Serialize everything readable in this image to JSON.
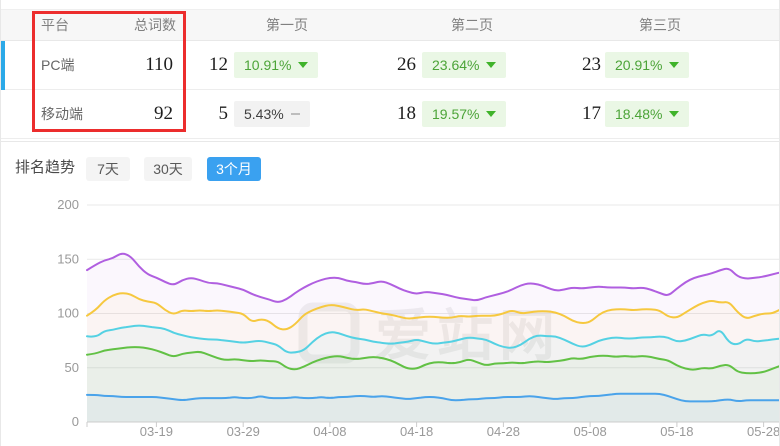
{
  "table": {
    "headers": {
      "platform": "平台",
      "total_words": "总词数",
      "page1": "第一页",
      "page2": "第二页",
      "page3": "第三页"
    },
    "rows": [
      {
        "platform": "PC端",
        "total": "110",
        "selected": true,
        "page1": {
          "count": "12",
          "percent": "10.91%",
          "trend": "down"
        },
        "page2": {
          "count": "26",
          "percent": "23.64%",
          "trend": "down"
        },
        "page3": {
          "count": "23",
          "percent": "20.91%",
          "trend": "down"
        }
      },
      {
        "platform": "移动端",
        "total": "92",
        "selected": false,
        "page1": {
          "count": "5",
          "percent": "5.43%",
          "trend": "flat"
        },
        "page2": {
          "count": "18",
          "percent": "19.57%",
          "trend": "down"
        },
        "page3": {
          "count": "17",
          "percent": "18.48%",
          "trend": "down"
        }
      }
    ]
  },
  "trend_section": {
    "label": "排名趋势",
    "tabs": [
      {
        "label": "7天",
        "active": false
      },
      {
        "label": "30天",
        "active": false
      },
      {
        "label": "3个月",
        "active": true
      }
    ]
  },
  "watermark": {
    "text": "爱站网",
    "icon": "aizhan-logo"
  },
  "colors": {
    "accent_row_indicator": "#2ba9e8",
    "annotation_box": "#ec2d2d",
    "tab_active_bg": "#3aa1f0",
    "badge_green_bg": "#eaf7e5",
    "badge_green_text": "#4ca438",
    "badge_gray_bg": "#f2f2f2",
    "header_band_bg": "#f7f7f7"
  },
  "chart_data": {
    "type": "line",
    "title": "",
    "xlabel": "",
    "ylabel": "",
    "smooth": true,
    "grid": true,
    "legend": "none",
    "ylim": [
      0,
      200
    ],
    "y_ticks": [
      0,
      50,
      100,
      150,
      200
    ],
    "x_labels": [
      "03-19",
      "03-29",
      "04-08",
      "04-18",
      "04-28",
      "05-08",
      "05-18",
      "05-28"
    ],
    "x_tick_indices": [
      8,
      18,
      28,
      38,
      48,
      58,
      68,
      78
    ],
    "series": [
      {
        "name": "purple",
        "color": "#b05fe0",
        "values": [
          140,
          145,
          149,
          151,
          156,
          153,
          143,
          136,
          133,
          129,
          126,
          131,
          133,
          131,
          128,
          128,
          126,
          124,
          122,
          118,
          115,
          113,
          110,
          113,
          119,
          124,
          128,
          131,
          133,
          133,
          130,
          129,
          127,
          128,
          130,
          127,
          123,
          120,
          118,
          120,
          119,
          118,
          116,
          114,
          113,
          112,
          115,
          117,
          119,
          122,
          126,
          128,
          127,
          124,
          121,
          122,
          124,
          123,
          124,
          125,
          124,
          124,
          124,
          123,
          124,
          122,
          119,
          116,
          123,
          129,
          133,
          135,
          137,
          140,
          142,
          134,
          132,
          133,
          134,
          136,
          138
        ]
      },
      {
        "name": "yellow",
        "color": "#f6c83f",
        "values": [
          98,
          103,
          112,
          117,
          119,
          118,
          113,
          111,
          110,
          103,
          99,
          103,
          102,
          103,
          102,
          103,
          102,
          101,
          100,
          92,
          95,
          93,
          86,
          85,
          90,
          99,
          103,
          106,
          108,
          107,
          105,
          103,
          104,
          102,
          100,
          99,
          97,
          95,
          96,
          97,
          97,
          96,
          96,
          98,
          97,
          98,
          98,
          98,
          100,
          103,
          100,
          101,
          102,
          102,
          101,
          98,
          93,
          91,
          92,
          99,
          103,
          104,
          104,
          103,
          104,
          104,
          103,
          97,
          96,
          101,
          106,
          110,
          112,
          110,
          111,
          101,
          95,
          98,
          100,
          100,
          104
        ]
      },
      {
        "name": "cyan",
        "color": "#54d1e3",
        "values": [
          79,
          78,
          84,
          85,
          87,
          88,
          89,
          88,
          87,
          86,
          82,
          80,
          78,
          77,
          76,
          76,
          75,
          74,
          73,
          74,
          75,
          73,
          71,
          64,
          64,
          66,
          74,
          80,
          83,
          82,
          79,
          77,
          76,
          74,
          73,
          72,
          73,
          74,
          76,
          74,
          72,
          73,
          74,
          76,
          78,
          77,
          76,
          72,
          69,
          68,
          71,
          77,
          80,
          79,
          79,
          76,
          72,
          69,
          71,
          75,
          77,
          78,
          77,
          77,
          78,
          78,
          79,
          78,
          74,
          75,
          78,
          81,
          79,
          86,
          73,
          71,
          77,
          74,
          75,
          76,
          77
        ]
      },
      {
        "name": "green",
        "color": "#62c145",
        "values": [
          62,
          63,
          66,
          67,
          68,
          69,
          69,
          68,
          66,
          63,
          60,
          63,
          64,
          65,
          62,
          59,
          57,
          58,
          57,
          56,
          57,
          56,
          56,
          50,
          48,
          51,
          55,
          58,
          60,
          61,
          59,
          58,
          59,
          60,
          59,
          57,
          53,
          49,
          49,
          53,
          55,
          55,
          54,
          55,
          58,
          55,
          52,
          54,
          54,
          55,
          54,
          55,
          56,
          55,
          56,
          57,
          59,
          58,
          60,
          61,
          61,
          60,
          61,
          60,
          61,
          60,
          58,
          57,
          52,
          49,
          48,
          50,
          49,
          52,
          53,
          46,
          45,
          45,
          46,
          49,
          52
        ]
      },
      {
        "name": "blue",
        "color": "#4aa3ea",
        "values": [
          25,
          25,
          24,
          24,
          23,
          23,
          23,
          23,
          23,
          22,
          21,
          20,
          21,
          22,
          22,
          22,
          22,
          23,
          22,
          22,
          24,
          22,
          22,
          22,
          23,
          22,
          22,
          23,
          22,
          23,
          23,
          24,
          24,
          23,
          24,
          23,
          22,
          21,
          22,
          23,
          23,
          22,
          20,
          20,
          21,
          21,
          22,
          22,
          23,
          23,
          23,
          24,
          23,
          22,
          21,
          22,
          22,
          23,
          24,
          24,
          25,
          26,
          26,
          26,
          26,
          26,
          26,
          24,
          21,
          19,
          19,
          19,
          19,
          20,
          21,
          19,
          20,
          20,
          20,
          20,
          20
        ]
      }
    ]
  }
}
